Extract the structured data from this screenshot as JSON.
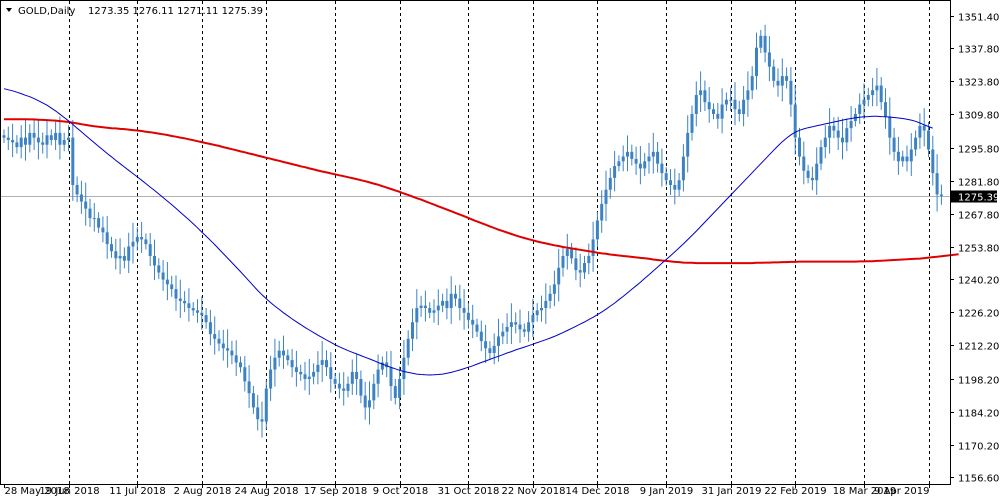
{
  "header": {
    "symbol": "GOLD,Daily",
    "ohlc": "1273.35 1276.11 1271.11 1275.39"
  },
  "colors": {
    "background": "#ffffff",
    "candle": "#3d82c4",
    "ma_fast": "#0000c8",
    "ma_slow": "#e00000",
    "grid": "#000000",
    "price_line": "#b0b0b0"
  },
  "chart_data": {
    "type": "candlestick",
    "y_axis": {
      "min": 1156.6,
      "max": 1351.4,
      "ticks": [
        "1351.40",
        "1337.80",
        "1323.80",
        "1309.80",
        "1295.80",
        "1281.80",
        "1267.80",
        "1253.80",
        "1240.20",
        "1226.20",
        "1212.20",
        "1198.20",
        "1184.20",
        "1170.20",
        "1156.60"
      ]
    },
    "x_labels": [
      "28 May 2018",
      "19 Jun 2018",
      "11 Jul 2018",
      "2 Aug 2018",
      "24 Aug 2018",
      "17 Sep 2018",
      "9 Oct 2018",
      "31 Oct 2018",
      "22 Nov 2018",
      "14 Dec 2018",
      "9 Jan 2019",
      "31 Jan 2019",
      "22 Feb 2019",
      "18 Mar 2019",
      "9 Apr 2019"
    ],
    "current_price": "1275.39",
    "grid": "vertical-dashed",
    "series": [
      {
        "kind": "close",
        "values": [
          1300,
          1299,
          1298,
          1296,
          1300,
          1297,
          1302,
          1300,
          1298,
          1297,
          1301,
          1299,
          1302,
          1297,
          1299,
          1300,
          1280,
          1276,
          1273,
          1270,
          1266,
          1266,
          1262,
          1260,
          1255,
          1252,
          1249,
          1250,
          1248,
          1254,
          1256,
          1258,
          1257,
          1255,
          1250,
          1246,
          1243,
          1240,
          1238,
          1236,
          1232,
          1231,
          1230,
          1228,
          1227,
          1226,
          1225,
          1222,
          1217,
          1215,
          1213,
          1211,
          1210,
          1208,
          1205,
          1203,
          1197,
          1192,
          1186,
          1181,
          1180,
          1194,
          1202,
          1207,
          1210,
          1208,
          1206,
          1203,
          1201,
          1200,
          1198,
          1199,
          1201,
          1204,
          1206,
          1203,
          1198,
          1196,
          1194,
          1193,
          1196,
          1201,
          1198,
          1191,
          1186,
          1189,
          1196,
          1202,
          1205,
          1203,
          1195,
          1190,
          1198,
          1207,
          1215,
          1222,
          1228,
          1229,
          1228,
          1226,
          1227,
          1229,
          1231,
          1228,
          1234,
          1232,
          1228,
          1226,
          1223,
          1221,
          1218,
          1214,
          1211,
          1209,
          1212,
          1216,
          1218,
          1220,
          1222,
          1221,
          1219,
          1218,
          1222,
          1225,
          1227,
          1228,
          1231,
          1234,
          1238,
          1245,
          1250,
          1253,
          1249,
          1244,
          1243,
          1247,
          1250,
          1257,
          1265,
          1272,
          1278,
          1283,
          1288,
          1290,
          1292,
          1294,
          1291,
          1289,
          1287,
          1290,
          1292,
          1294,
          1289,
          1285,
          1282,
          1280,
          1278,
          1282,
          1292,
          1302,
          1310,
          1318,
          1320,
          1315,
          1312,
          1310,
          1308,
          1314,
          1316,
          1316,
          1312,
          1310,
          1316,
          1320,
          1326,
          1338,
          1343,
          1336,
          1330,
          1324,
          1322,
          1326,
          1324,
          1314,
          1300,
          1292,
          1286,
          1283,
          1282,
          1289,
          1296,
          1300,
          1305,
          1303,
          1300,
          1298,
          1304,
          1307,
          1310,
          1314,
          1316,
          1318,
          1320,
          1322,
          1315,
          1309,
          1300,
          1294,
          1290,
          1292,
          1290,
          1295,
          1300,
          1305,
          1303,
          1295,
          1285,
          1276,
          1275.39
        ]
      },
      {
        "kind": "moving-average-fast",
        "values": [
          1320.7,
          1320.2,
          1319.8,
          1319.2,
          1318.6,
          1317.9,
          1317.3,
          1316.5,
          1315.6,
          1314.7,
          1313.7,
          1312.5,
          1311.3,
          1309.9,
          1308.5,
          1307.1,
          1305.6,
          1304.0,
          1302.5,
          1300.9,
          1299.4,
          1297.8,
          1296.3,
          1294.8,
          1293.3,
          1291.9,
          1290.4,
          1289.0,
          1287.6,
          1286.2,
          1284.8,
          1283.4,
          1282.0,
          1280.6,
          1279.1,
          1277.7,
          1276.2,
          1274.7,
          1273.2,
          1271.7,
          1270.1,
          1268.5,
          1266.9,
          1265.3,
          1263.6,
          1261.9,
          1260.1,
          1258.4,
          1256.6,
          1254.8,
          1252.9,
          1251.0,
          1249.1,
          1247.2,
          1245.3,
          1243.4,
          1241.4,
          1239.4,
          1237.4,
          1235.4,
          1233.6,
          1231.9,
          1230.3,
          1228.8,
          1227.4,
          1226.0,
          1224.7,
          1223.4,
          1222.2,
          1221.0,
          1219.8,
          1218.7,
          1217.6,
          1216.5,
          1215.5,
          1214.5,
          1213.5,
          1212.5,
          1211.6,
          1210.8,
          1210.0,
          1209.3,
          1208.6,
          1207.9,
          1207.2,
          1206.5,
          1205.8,
          1205.0,
          1204.3,
          1203.6,
          1202.9,
          1202.3,
          1201.7,
          1201.2,
          1200.8,
          1200.4,
          1200.1,
          1199.9,
          1199.8,
          1199.7,
          1199.8,
          1199.9,
          1200.1,
          1200.4,
          1200.8,
          1201.3,
          1201.8,
          1202.4,
          1203.0,
          1203.6,
          1204.3,
          1205.0,
          1205.6,
          1206.3,
          1207.0,
          1207.6,
          1208.3,
          1209.0,
          1209.6,
          1210.3,
          1210.9,
          1211.5,
          1212.1,
          1212.7,
          1213.4,
          1214.0,
          1214.6,
          1215.3,
          1216.0,
          1216.8,
          1217.6,
          1218.5,
          1219.4,
          1220.3,
          1221.2,
          1222.1,
          1223.1,
          1224.1,
          1225.2,
          1226.3,
          1227.5,
          1228.8,
          1230.1,
          1231.5,
          1232.9,
          1234.4,
          1235.9,
          1237.4,
          1238.9,
          1240.5,
          1242.1,
          1243.7,
          1245.3,
          1246.9,
          1248.5,
          1250.1,
          1251.7,
          1253.4,
          1255.1,
          1256.9,
          1258.7,
          1260.5,
          1262.4,
          1264.3,
          1266.2,
          1268.1,
          1270.0,
          1271.9,
          1273.8,
          1275.7,
          1277.6,
          1279.5,
          1281.4,
          1283.3,
          1285.2,
          1287.1,
          1289.0,
          1290.9,
          1292.8,
          1294.7,
          1296.5,
          1298.3,
          1299.8,
          1301.2,
          1302.3,
          1303.1,
          1303.7,
          1304.2,
          1304.6,
          1305.0,
          1305.4,
          1305.8,
          1306.2,
          1306.6,
          1307.0,
          1307.4,
          1307.8,
          1308.1,
          1308.4,
          1308.6,
          1308.8,
          1308.9,
          1309.0,
          1309.0,
          1308.9,
          1308.8,
          1308.7,
          1308.5,
          1308.3,
          1308.1,
          1307.8,
          1307.4,
          1306.9,
          1306.2,
          1305.4,
          1304.7,
          1304.0
        ]
      },
      {
        "kind": "moving-average-slow",
        "values": [
          1307.8,
          1307.8,
          1307.8,
          1307.8,
          1307.8,
          1307.8,
          1307.7,
          1307.7,
          1307.6,
          1307.5,
          1307.4,
          1307.3,
          1307.2,
          1307.0,
          1306.8,
          1306.6,
          1306.3,
          1306.0,
          1305.7,
          1305.4,
          1305.1,
          1304.8,
          1304.6,
          1304.4,
          1304.2,
          1304.0,
          1303.9,
          1303.7,
          1303.6,
          1303.4,
          1303.2,
          1303.0,
          1302.8,
          1302.5,
          1302.3,
          1302.0,
          1301.7,
          1301.4,
          1301.1,
          1300.7,
          1300.4,
          1300.0,
          1299.7,
          1299.3,
          1298.9,
          1298.5,
          1298.1,
          1297.7,
          1297.3,
          1296.9,
          1296.5,
          1296.0,
          1295.6,
          1295.1,
          1294.7,
          1294.2,
          1293.8,
          1293.3,
          1292.9,
          1292.4,
          1292.0,
          1291.5,
          1291.1,
          1290.6,
          1290.2,
          1289.7,
          1289.3,
          1288.8,
          1288.4,
          1287.9,
          1287.5,
          1287.0,
          1286.6,
          1286.1,
          1285.7,
          1285.3,
          1284.9,
          1284.5,
          1284.1,
          1283.7,
          1283.3,
          1282.9,
          1282.5,
          1282.0,
          1281.6,
          1281.1,
          1280.6,
          1280.1,
          1279.5,
          1278.9,
          1278.3,
          1277.7,
          1277.1,
          1276.4,
          1275.8,
          1275.1,
          1274.4,
          1273.8,
          1273.1,
          1272.4,
          1271.7,
          1271.0,
          1270.3,
          1269.6,
          1268.9,
          1268.2,
          1267.5,
          1266.8,
          1266.1,
          1265.3,
          1264.6,
          1263.9,
          1263.2,
          1262.5,
          1261.8,
          1261.1,
          1260.5,
          1259.9,
          1259.3,
          1258.7,
          1258.1,
          1257.6,
          1257.1,
          1256.6,
          1256.1,
          1255.7,
          1255.3,
          1254.9,
          1254.5,
          1254.2,
          1253.8,
          1253.5,
          1253.2,
          1252.9,
          1252.6,
          1252.3,
          1252.0,
          1251.7,
          1251.4,
          1251.1,
          1250.9,
          1250.6,
          1250.4,
          1250.2,
          1250.0,
          1249.8,
          1249.6,
          1249.4,
          1249.2,
          1249.0,
          1248.8,
          1248.5,
          1248.3,
          1248.1,
          1247.9,
          1247.7,
          1247.5,
          1247.4,
          1247.2,
          1247.1,
          1247.1,
          1247.0,
          1247.0,
          1247.0,
          1247.0,
          1247.0,
          1247.0,
          1247.0,
          1247.0,
          1247.0,
          1247.0,
          1247.0,
          1247.0,
          1247.0,
          1247.0,
          1247.1,
          1247.1,
          1247.2,
          1247.2,
          1247.3,
          1247.3,
          1247.4,
          1247.4,
          1247.5,
          1247.5,
          1247.6,
          1247.6,
          1247.6,
          1247.6,
          1247.6,
          1247.6,
          1247.6,
          1247.6,
          1247.6,
          1247.6,
          1247.6,
          1247.6,
          1247.6,
          1247.6,
          1247.7,
          1247.7,
          1247.8,
          1247.8,
          1247.9,
          1248.0,
          1248.1,
          1248.2,
          1248.3,
          1248.4,
          1248.5,
          1248.6,
          1248.7,
          1248.8,
          1248.9,
          1249.1,
          1249.3,
          1249.5,
          1249.7,
          1249.9,
          1250.1,
          1250.3,
          1250.5,
          1250.7
        ]
      }
    ]
  }
}
